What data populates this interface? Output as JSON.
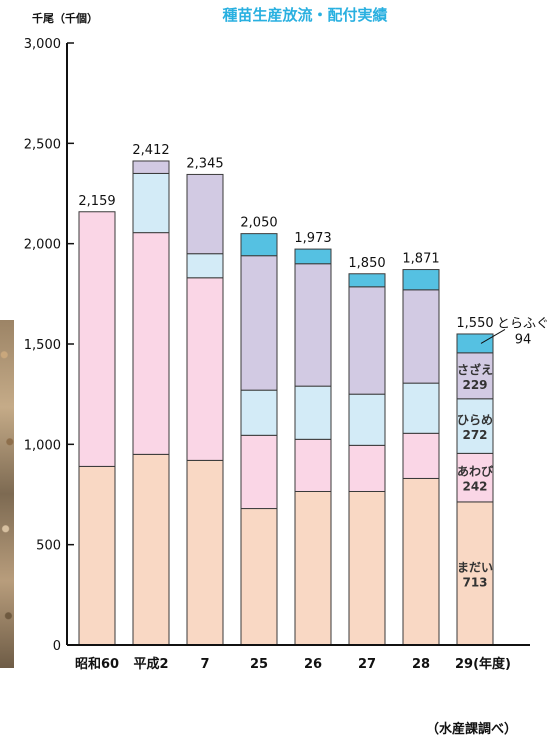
{
  "colors": {
    "title": "#29b0e0",
    "madai": "#f9d8c4",
    "awabi": "#fad6e6",
    "hirame": "#d3ebf7",
    "sazae": "#d2cae3",
    "torafugu": "#55c1e2",
    "outline": "#3a3a3a"
  },
  "chart_data": {
    "type": "bar",
    "stacked": true,
    "title": "種苗生産放流・配付実績",
    "ylabel": "千尾（千個）",
    "source": "（水産課調べ）",
    "ylim": [
      0,
      3000
    ],
    "yticks": [
      "0",
      "500",
      "1,000",
      "1,500",
      "2,000",
      "2,500",
      "3,000"
    ],
    "ytick_values": [
      0,
      500,
      1000,
      1500,
      2000,
      2500,
      3000
    ],
    "categories": [
      "昭和60",
      "平成2",
      "7",
      "25",
      "26",
      "27",
      "28",
      "29(年度)"
    ],
    "totals": [
      2159,
      2412,
      2345,
      2050,
      1973,
      1850,
      1871,
      1550
    ],
    "total_labels": [
      "2,159",
      "2,412",
      "2,345",
      "2,050",
      "1,973",
      "1,850",
      "1,871",
      "1,550"
    ],
    "series": [
      {
        "key": "madai",
        "name": "まだい",
        "values": [
          890,
          950,
          920,
          680,
          765,
          765,
          830,
          713
        ]
      },
      {
        "key": "awabi",
        "name": "あわび",
        "values": [
          1269,
          1105,
          910,
          365,
          260,
          230,
          225,
          242
        ]
      },
      {
        "key": "hirame",
        "name": "ひらめ",
        "values": [
          0,
          295,
          120,
          225,
          265,
          255,
          250,
          272
        ]
      },
      {
        "key": "sazae",
        "name": "さざえ",
        "values": [
          0,
          62,
          395,
          670,
          610,
          535,
          465,
          229
        ]
      },
      {
        "key": "torafugu",
        "name": "とらふぐ",
        "values": [
          0,
          0,
          0,
          110,
          73,
          65,
          101,
          94
        ]
      }
    ],
    "last_bar_labels": [
      {
        "key": "madai",
        "name": "まだい",
        "value": "713"
      },
      {
        "key": "awabi",
        "name": "あわび",
        "value": "242"
      },
      {
        "key": "hirame",
        "name": "ひらめ",
        "value": "272"
      },
      {
        "key": "sazae",
        "name": "さざえ",
        "value": "229"
      }
    ],
    "callout": {
      "key": "torafugu",
      "name": "とらふぐ",
      "value": "94"
    },
    "grid": false,
    "legend": "none"
  }
}
